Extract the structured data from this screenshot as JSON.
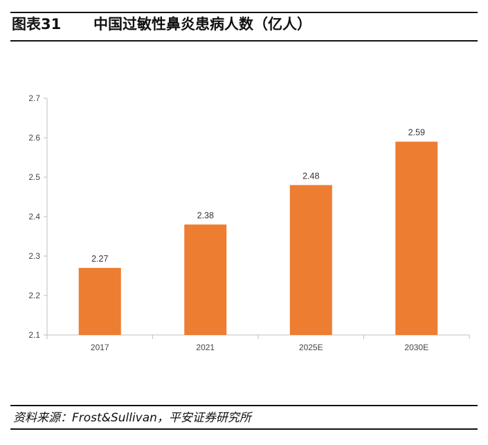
{
  "figure": {
    "number": "图表31",
    "title": "中国过敏性鼻炎患病人数（亿人）",
    "source": "资料来源：Frost&Sullivan，平安证券研究所"
  },
  "chart_data": {
    "type": "bar",
    "title": "",
    "xlabel": "",
    "ylabel": "",
    "categories": [
      "2017",
      "2021",
      "2025E",
      "2030E"
    ],
    "values": [
      2.27,
      2.38,
      2.48,
      2.59
    ],
    "data_labels": [
      "2.27",
      "2.38",
      "2.48",
      "2.59"
    ],
    "ylim": [
      2.1,
      2.7
    ],
    "yticks": [
      "2.1",
      "2.2",
      "2.3",
      "2.4",
      "2.5",
      "2.6",
      "2.7"
    ],
    "grid": false,
    "legend": "none",
    "bar_color": "#ED7D31",
    "axis_color": "#BFBFBF"
  }
}
